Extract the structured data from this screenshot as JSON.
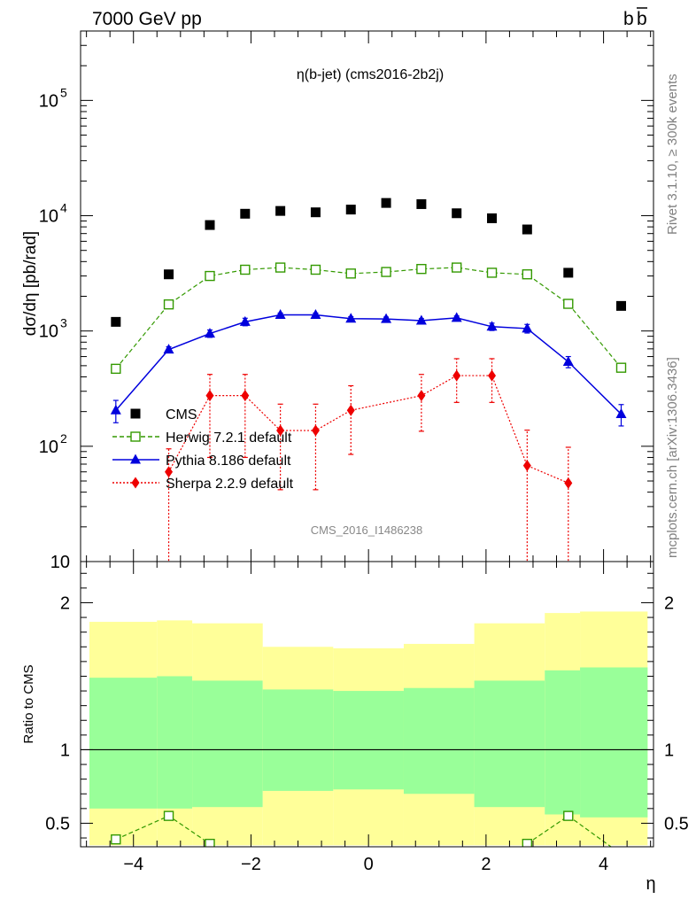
{
  "header": {
    "left": "7000 GeV pp",
    "right_main": "b",
    "right_bar": "b"
  },
  "side_labels": {
    "rivet": "Rivet 3.1.10, ≥ 300k events",
    "mcplots": "mcplots.cern.ch [arXiv:1306.3436]"
  },
  "colors": {
    "cms": "#000000",
    "herwig": "#339900",
    "pythia": "#0000dd",
    "sherpa": "#ee0000",
    "band_inner": "#99ff99",
    "band_outer": "#ffff99"
  },
  "chart_data": [
    {
      "type": "scatter",
      "title": "η(b-jet) (cms2016-2b2j)",
      "ylabel": "dσ/dη [pb/rad]",
      "yscale": "log",
      "ylim": [
        10,
        400000
      ],
      "xlim": [
        -4.9,
        4.85
      ],
      "y_ticks": [
        {
          "value": 10,
          "base": "10",
          "exp": ""
        },
        {
          "value": 100,
          "base": "10",
          "exp": "2"
        },
        {
          "value": 1000,
          "base": "10",
          "exp": "3"
        },
        {
          "value": 10000,
          "base": "10",
          "exp": "4"
        },
        {
          "value": 100000,
          "base": "10",
          "exp": "5"
        }
      ],
      "watermark": "CMS_2016_I1486238",
      "legend_placement": "bottom-left",
      "series": [
        {
          "name": "CMS",
          "style": "square",
          "x": [
            -4.3,
            -3.4,
            -2.7,
            -2.1,
            -1.5,
            -0.9,
            -0.3,
            0.3,
            0.9,
            1.5,
            2.1,
            2.7,
            3.4,
            4.3
          ],
          "y": [
            1200,
            3100,
            8300,
            10400,
            11000,
            10700,
            11300,
            12900,
            12600,
            10500,
            9500,
            7600,
            3200,
            1650
          ]
        },
        {
          "name": "Herwig 7.2.1 default",
          "style": "open-square-dashed",
          "x": [
            -4.3,
            -3.4,
            -2.7,
            -2.1,
            -1.5,
            -0.9,
            -0.3,
            0.3,
            0.9,
            1.5,
            2.1,
            2.7,
            3.4,
            4.3
          ],
          "y": [
            470,
            1700,
            3000,
            3400,
            3550,
            3400,
            3150,
            3250,
            3450,
            3550,
            3200,
            3100,
            1720,
            480
          ]
        },
        {
          "name": "Pythia 8.186 default",
          "style": "triangle-solid",
          "x": [
            -4.3,
            -3.4,
            -2.7,
            -2.1,
            -1.5,
            -0.9,
            -0.3,
            0.3,
            0.9,
            1.5,
            2.1,
            2.7,
            3.4,
            4.3
          ],
          "y": [
            205,
            690,
            950,
            1200,
            1380,
            1380,
            1280,
            1270,
            1230,
            1300,
            1090,
            1050,
            540,
            190
          ],
          "err_lo": [
            45,
            40,
            70,
            90,
            50,
            50,
            50,
            50,
            50,
            50,
            80,
            90,
            60,
            40
          ],
          "err_hi": [
            45,
            40,
            70,
            90,
            50,
            50,
            50,
            50,
            50,
            50,
            80,
            90,
            60,
            40
          ]
        },
        {
          "name": "Sherpa 2.2.9 default",
          "style": "diamond-dotted",
          "x": [
            -3.4,
            -2.7,
            -2.1,
            -1.5,
            -0.9,
            -0.3,
            0.9,
            1.5,
            2.1,
            2.7,
            3.4
          ],
          "y": [
            60,
            275,
            275,
            137,
            137,
            205,
            275,
            410,
            410,
            68,
            48
          ],
          "err_lo": [
            55,
            195,
            195,
            95,
            95,
            120,
            140,
            170,
            170,
            63,
            43
          ],
          "err_hi": [
            35,
            145,
            145,
            95,
            95,
            130,
            145,
            165,
            165,
            70,
            50
          ]
        }
      ]
    },
    {
      "type": "area",
      "ylabel": "Ratio to CMS",
      "xlabel": "η",
      "ylim": [
        0.34,
        2.28
      ],
      "xlim": [
        -4.9,
        4.85
      ],
      "y_ticks": [
        "0.5",
        "1",
        "2"
      ],
      "x_ticks": [
        "−4",
        "−2",
        "0",
        "2",
        "4"
      ],
      "bins": [
        [
          -4.75,
          -3.6
        ],
        [
          -3.6,
          -3.0
        ],
        [
          -3.0,
          -1.8
        ],
        [
          -1.8,
          -0.6
        ],
        [
          -0.6,
          0.6
        ],
        [
          0.6,
          1.8
        ],
        [
          1.8,
          3.0
        ],
        [
          3.0,
          3.6
        ],
        [
          3.6,
          4.75
        ]
      ],
      "band_outer": [
        [
          0.35,
          1.87
        ],
        [
          0.35,
          1.88
        ],
        [
          0.35,
          1.86
        ],
        [
          0.35,
          1.7
        ],
        [
          0.35,
          1.69
        ],
        [
          0.35,
          1.72
        ],
        [
          0.35,
          1.86
        ],
        [
          0.35,
          1.93
        ],
        [
          0.35,
          1.94
        ]
      ],
      "band_inner": [
        [
          0.6,
          1.49
        ],
        [
          0.6,
          1.5
        ],
        [
          0.61,
          1.47
        ],
        [
          0.72,
          1.41
        ],
        [
          0.73,
          1.4
        ],
        [
          0.7,
          1.42
        ],
        [
          0.61,
          1.47
        ],
        [
          0.56,
          1.54
        ],
        [
          0.54,
          1.56
        ]
      ],
      "series": [
        {
          "name": "Herwig 7.2.1 default",
          "x": [
            -4.3,
            -3.4,
            -2.7,
            2.7,
            3.4,
            4.3
          ],
          "y": [
            0.39,
            0.55,
            0.36,
            0.36,
            0.55,
            0.29
          ]
        }
      ]
    }
  ]
}
